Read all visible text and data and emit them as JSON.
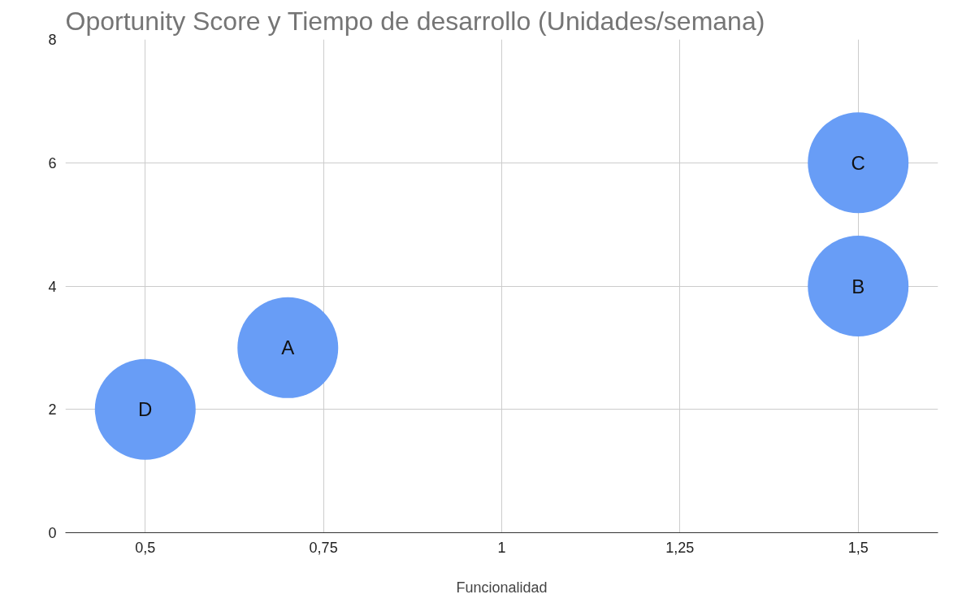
{
  "chart_data": {
    "type": "bubble",
    "title": "Oportunity Score y Tiempo de desarrollo (Unidades/semana)",
    "xlabel": "Funcionalidad",
    "x": [
      0.5,
      0.7,
      1.5,
      1.5
    ],
    "values": [
      2,
      3,
      4,
      6
    ],
    "sizes": [
      1,
      1,
      1,
      1
    ],
    "color": "#689df6",
    "annotations": [
      {
        "text": "D",
        "x": 0.5,
        "y": 2
      },
      {
        "text": "A",
        "x": 0.7,
        "y": 3
      },
      {
        "text": "B",
        "x": 1.5,
        "y": 4
      },
      {
        "text": "C",
        "x": 1.5,
        "y": 6
      }
    ],
    "xlim": [
      0.388,
      1.612
    ],
    "ylim": [
      0,
      8
    ],
    "xticks": [
      {
        "value": 0.5,
        "label": "0,5"
      },
      {
        "value": 0.75,
        "label": "0,75"
      },
      1,
      {
        "value": 1.25,
        "label": "1,25"
      },
      {
        "value": 1.5,
        "label": "1,5"
      }
    ],
    "yticks": [
      0,
      2,
      4,
      6,
      8
    ],
    "grid": true
  }
}
